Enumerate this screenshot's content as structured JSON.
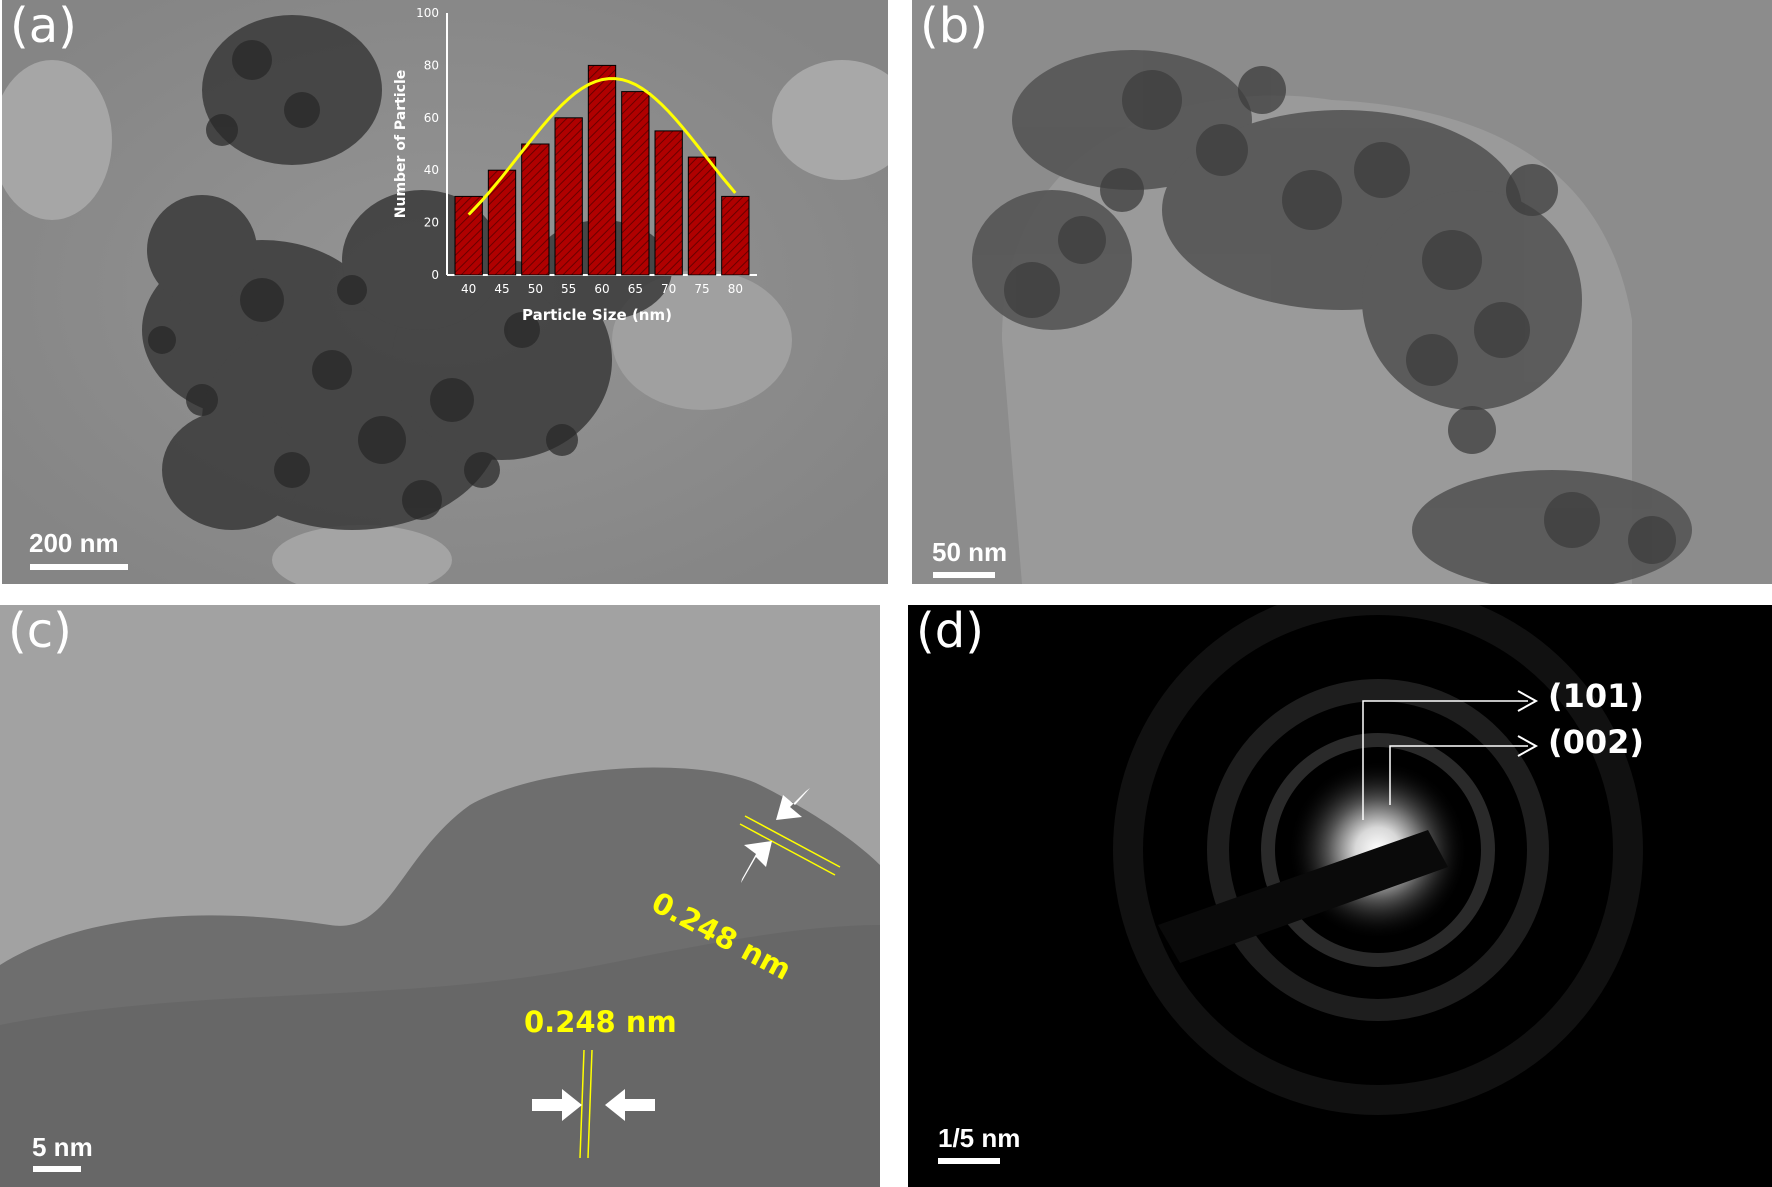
{
  "panels": {
    "a": {
      "label": "(a)",
      "scale": "200 nm"
    },
    "b": {
      "label": "(b)",
      "scale": "50 nm"
    },
    "c": {
      "label": "(c)",
      "scale": "5 nm",
      "spacing_top": "0.248 nm",
      "spacing_bottom": "0.248 nm"
    },
    "d": {
      "label": "(d)",
      "scale": "1/5 nm",
      "ring1": "(101)",
      "ring2": "(002)"
    }
  },
  "chart_data": {
    "type": "bar",
    "categories": [
      "40",
      "45",
      "50",
      "55",
      "60",
      "65",
      "70",
      "75",
      "80"
    ],
    "values": [
      30,
      40,
      50,
      60,
      80,
      70,
      55,
      45,
      30
    ],
    "fit_curve": true,
    "xlabel": "Particle Size (nm)",
    "ylabel": "Number of Particle",
    "yticks": [
      "0",
      "20",
      "40",
      "60",
      "80",
      "100"
    ],
    "ylim": [
      0,
      100
    ],
    "bar_color": "#b00000",
    "curve_color": "#ffff00"
  },
  "colors": {
    "label_yellow": "#ffff00",
    "tem_grey": "#8f8f8f",
    "dark": "#000000"
  }
}
